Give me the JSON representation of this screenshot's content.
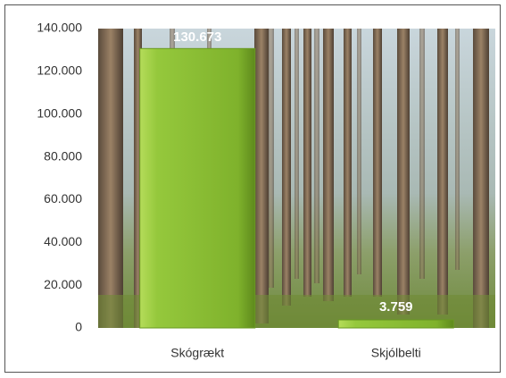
{
  "chart_data": {
    "type": "bar",
    "categories": [
      "Skógrækt",
      "Skjólbelti"
    ],
    "values": [
      130673,
      3759
    ],
    "value_labels": [
      "130.673",
      "3.759"
    ],
    "color": "#84b832",
    "ylim": [
      0,
      140000
    ],
    "yticks": [
      0,
      {
        "value": 20000,
        "label": "20.000"
      },
      {
        "value": 40000,
        "label": "40.000"
      },
      {
        "value": 60000,
        "label": "60.000"
      },
      {
        "value": 80000,
        "label": "80.000"
      },
      {
        "value": 100000,
        "label": "100.000"
      },
      {
        "value": 120000,
        "label": "120.000"
      },
      {
        "value": 140000,
        "label": "140.000"
      }
    ],
    "grid": false
  }
}
